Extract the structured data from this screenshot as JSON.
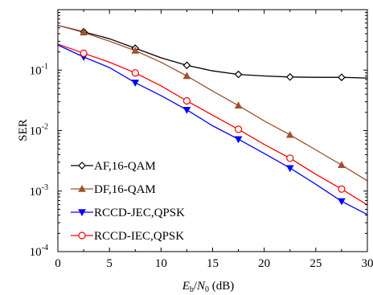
{
  "chart_data": {
    "type": "line",
    "xlabel": {
      "italic_e": "E",
      "sub_b": "b",
      "mid": "/",
      "italic_n": "N",
      "sub_0": "0",
      "unit": " (dB)"
    },
    "ylabel": "SER",
    "x_ticks": [
      "0",
      "5",
      "10",
      "15",
      "20",
      "25",
      "30"
    ],
    "y_ticks": [
      {
        "base": "10",
        "exp": "-4",
        "value": 0.0001
      },
      {
        "base": "10",
        "exp": "-3",
        "value": 0.001
      },
      {
        "base": "10",
        "exp": "-2",
        "value": 0.01
      },
      {
        "base": "10",
        "exp": "-1",
        "value": 0.1
      }
    ],
    "xlim": [
      0,
      30
    ],
    "ylim": [
      0.0001,
      1
    ],
    "yscale": "log",
    "grid": false,
    "legend_position": "bottom-left",
    "x": [
      0,
      2.5,
      5,
      7.5,
      10,
      12.5,
      15,
      17.5,
      20,
      22.5,
      25,
      27.5,
      30
    ],
    "series": [
      {
        "name": "AF,16-QAM",
        "color": "#000000",
        "marker": "diamond",
        "values": [
          0.55,
          0.43,
          0.33,
          0.23,
          0.16,
          0.12,
          0.097,
          0.085,
          0.08,
          0.077,
          0.076,
          0.076,
          0.074
        ]
      },
      {
        "name": "DF,16-QAM",
        "color": "#a0522d",
        "marker": "triangle-up",
        "values": [
          0.55,
          0.42,
          0.3,
          0.21,
          0.135,
          0.08,
          0.045,
          0.026,
          0.0145,
          0.0085,
          0.0048,
          0.0027,
          0.00148
        ]
      },
      {
        "name": "RCCD-JEC,QPSK",
        "color": "#0000ff",
        "marker": "triangle-down",
        "values": [
          0.26,
          0.165,
          0.11,
          0.062,
          0.038,
          0.022,
          0.012,
          0.0072,
          0.0042,
          0.0024,
          0.0013,
          0.00068,
          0.00041
        ]
      },
      {
        "name": "RCCD-IEC,QPSK",
        "color": "#ff0000",
        "marker": "circle",
        "values": [
          0.27,
          0.19,
          0.135,
          0.09,
          0.055,
          0.031,
          0.018,
          0.0105,
          0.0059,
          0.0035,
          0.0019,
          0.00108,
          0.00059
        ]
      }
    ]
  }
}
